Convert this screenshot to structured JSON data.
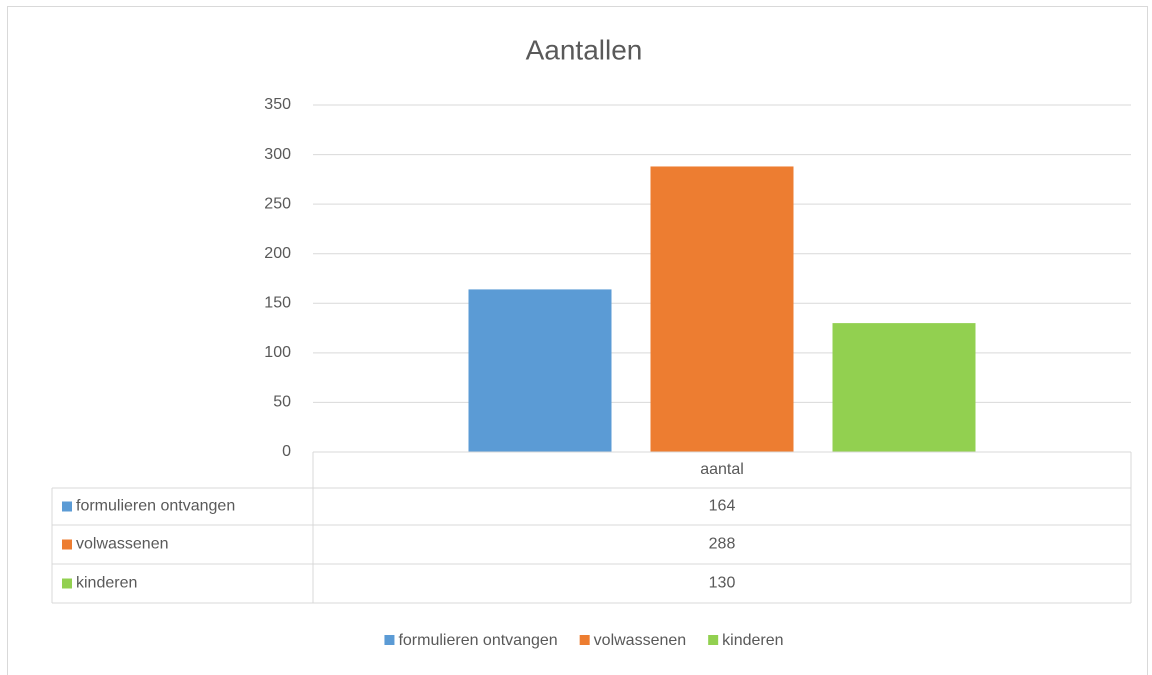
{
  "chart_data": {
    "type": "bar",
    "title": "Aantallen",
    "categories": [
      "aantal"
    ],
    "series": [
      {
        "name": "formulieren ontvangen",
        "color": "#5b9bd5",
        "values": [
          164
        ]
      },
      {
        "name": "volwassenen",
        "color": "#ed7d31",
        "values": [
          288
        ]
      },
      {
        "name": "kinderen",
        "color": "#92d050",
        "values": [
          130
        ]
      }
    ],
    "ylim": [
      0,
      350
    ],
    "yticks": [
      0,
      50,
      100,
      150,
      200,
      250,
      300,
      350
    ],
    "grid": true,
    "data_table": true,
    "legend": "bottom"
  }
}
